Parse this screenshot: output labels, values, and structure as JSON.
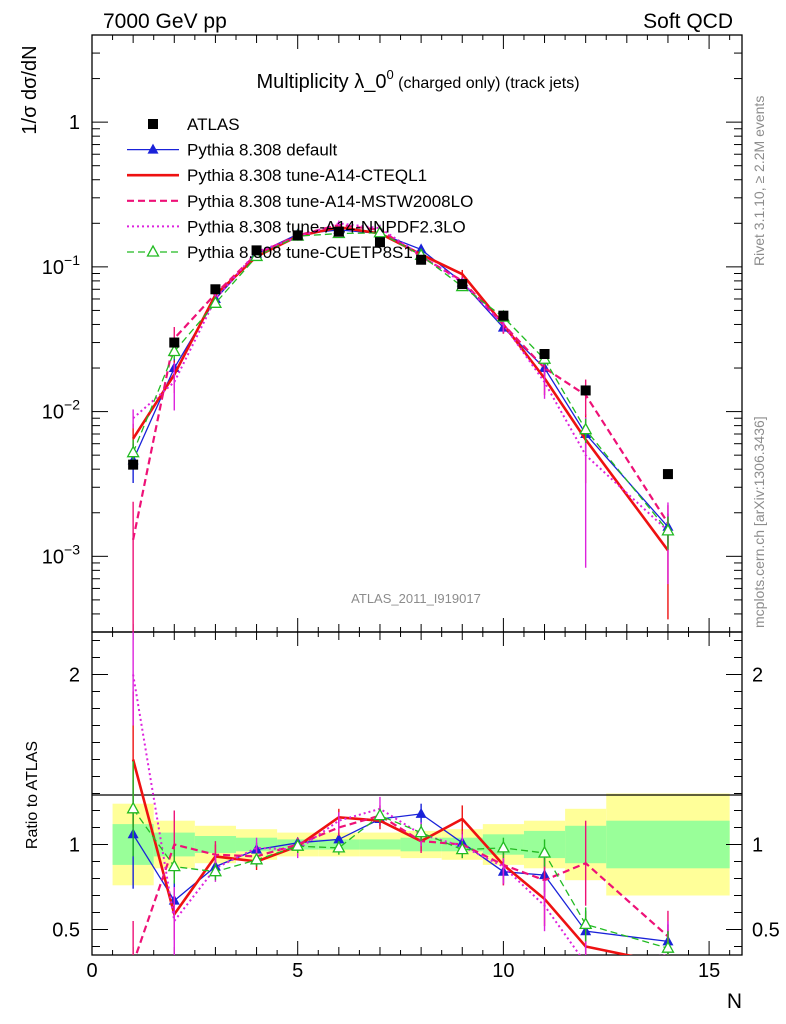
{
  "header": {
    "left": "7000 GeV pp",
    "right": "Soft QCD"
  },
  "title": {
    "main": "Multiplicity λ_0",
    "sup": "0",
    "small": " (charged only) (track jets)"
  },
  "ylabel_top": "1/σ dσ/dN",
  "ylabel_ratio": "Ratio to ATLAS",
  "xlabel": "N",
  "side_text_1": "Rivet 3.1.10, ≥ 2.2M events",
  "side_text_2": "mcplots.cern.ch [arXiv:1306.3436]",
  "analysis_label": "ATLAS_2011_I919017",
  "chart_data": {
    "type": "scatter",
    "x_range": [
      0,
      15.8
    ],
    "top_panel": {
      "y_scale": "log",
      "y_range": [
        0.0003,
        4
      ],
      "y_ticks": [
        {
          "value": 0.001,
          "base": "10",
          "exp": "−3"
        },
        {
          "value": 0.01,
          "base": "10",
          "exp": "−2"
        },
        {
          "value": 0.1,
          "base": "10",
          "exp": "−1"
        },
        {
          "value": 1,
          "base": "1",
          "exp": ""
        }
      ]
    },
    "ratio_panel": {
      "y_range": [
        0.35,
        2.25
      ],
      "y_ticks": [
        "0.5",
        "1",
        "2"
      ],
      "y_tick_values": [
        0.5,
        1,
        2
      ]
    },
    "x_ticks": [
      "0",
      "5",
      "10",
      "15"
    ],
    "x_tick_values": [
      0,
      5,
      10,
      15
    ],
    "band_yellow": [
      {
        "x0": 0.5,
        "x1": 1.5,
        "lo": 0.76,
        "hi": 1.24
      },
      {
        "x0": 1.5,
        "x1": 2.5,
        "lo": 0.86,
        "hi": 1.14
      },
      {
        "x0": 2.5,
        "x1": 3.5,
        "lo": 0.89,
        "hi": 1.11
      },
      {
        "x0": 3.5,
        "x1": 4.5,
        "lo": 0.91,
        "hi": 1.09
      },
      {
        "x0": 4.5,
        "x1": 5.5,
        "lo": 0.93,
        "hi": 1.07
      },
      {
        "x0": 5.5,
        "x1": 6.5,
        "lo": 0.93,
        "hi": 1.07
      },
      {
        "x0": 6.5,
        "x1": 7.5,
        "lo": 0.93,
        "hi": 1.07
      },
      {
        "x0": 7.5,
        "x1": 8.5,
        "lo": 0.92,
        "hi": 1.08
      },
      {
        "x0": 8.5,
        "x1": 9.5,
        "lo": 0.91,
        "hi": 1.09
      },
      {
        "x0": 9.5,
        "x1": 10.5,
        "lo": 0.88,
        "hi": 1.12
      },
      {
        "x0": 10.5,
        "x1": 11.5,
        "lo": 0.86,
        "hi": 1.14
      },
      {
        "x0": 11.5,
        "x1": 12.5,
        "lo": 0.79,
        "hi": 1.21
      },
      {
        "x0": 12.5,
        "x1": 15.5,
        "lo": 0.7,
        "hi": 1.3
      }
    ],
    "band_green": [
      {
        "x0": 0.5,
        "x1": 1.5,
        "lo": 0.88,
        "hi": 1.12
      },
      {
        "x0": 1.5,
        "x1": 2.5,
        "lo": 0.93,
        "hi": 1.07
      },
      {
        "x0": 2.5,
        "x1": 3.5,
        "lo": 0.95,
        "hi": 1.05
      },
      {
        "x0": 3.5,
        "x1": 4.5,
        "lo": 0.96,
        "hi": 1.04
      },
      {
        "x0": 4.5,
        "x1": 5.5,
        "lo": 0.97,
        "hi": 1.03
      },
      {
        "x0": 5.5,
        "x1": 6.5,
        "lo": 0.97,
        "hi": 1.03
      },
      {
        "x0": 6.5,
        "x1": 7.5,
        "lo": 0.97,
        "hi": 1.03
      },
      {
        "x0": 7.5,
        "x1": 8.5,
        "lo": 0.96,
        "hi": 1.04
      },
      {
        "x0": 8.5,
        "x1": 9.5,
        "lo": 0.96,
        "hi": 1.04
      },
      {
        "x0": 9.5,
        "x1": 10.5,
        "lo": 0.94,
        "hi": 1.06
      },
      {
        "x0": 10.5,
        "x1": 11.5,
        "lo": 0.92,
        "hi": 1.08
      },
      {
        "x0": 11.5,
        "x1": 12.5,
        "lo": 0.89,
        "hi": 1.11
      },
      {
        "x0": 12.5,
        "x1": 15.5,
        "lo": 0.86,
        "hi": 1.14
      }
    ],
    "data": {
      "name": "ATLAS",
      "color": "#000000",
      "x": [
        1,
        2,
        3,
        4,
        5,
        6,
        7,
        8,
        9,
        10,
        11,
        12,
        14
      ],
      "y": [
        0.0043,
        0.03,
        0.07,
        0.13,
        0.165,
        0.175,
        0.148,
        0.112,
        0.076,
        0.046,
        0.025,
        0.014,
        0.0037
      ]
    },
    "series": [
      {
        "name": "Pythia 8.308 default",
        "color": "#1a22d9",
        "style": "solid",
        "marker": "triangle-filled",
        "width": 1.3,
        "x": [
          1,
          2,
          3,
          4,
          5,
          6,
          7,
          8,
          9,
          10,
          11,
          12,
          14
        ],
        "y": [
          0.0046,
          0.02,
          0.06,
          0.123,
          0.168,
          0.18,
          0.17,
          0.132,
          0.078,
          0.038,
          0.02,
          0.007,
          0.0016
        ],
        "ratio": [
          1.06,
          0.67,
          0.87,
          0.97,
          1.01,
          1.03,
          1.15,
          1.18,
          1.01,
          0.84,
          0.82,
          0.49,
          0.43
        ],
        "ratio_err": [
          0.32,
          0.12,
          0.05,
          0.04,
          0.03,
          0.04,
          0.04,
          0.06,
          0.06,
          0.07,
          0.1,
          0.12,
          0.1
        ]
      },
      {
        "name": "Pythia 8.308 tune-A14-CTEQL1",
        "color": "#ee1111",
        "style": "solid",
        "marker": "none",
        "width": 2.6,
        "x": [
          1,
          2,
          3,
          4,
          5,
          6,
          7,
          8,
          9,
          10,
          11,
          12,
          14
        ],
        "y": [
          0.0065,
          0.018,
          0.064,
          0.118,
          0.163,
          0.188,
          0.17,
          0.122,
          0.089,
          0.04,
          0.017,
          0.0064,
          0.0011
        ],
        "ratio": [
          1.5,
          0.59,
          0.93,
          0.9,
          0.99,
          1.16,
          1.14,
          1.02,
          1.15,
          0.88,
          0.68,
          0.4,
          0.3
        ],
        "ratio_err": [
          0.4,
          0.15,
          0.07,
          0.05,
          0.04,
          0.05,
          0.05,
          0.06,
          0.08,
          0.12,
          0.16,
          0.2,
          0.2
        ]
      },
      {
        "name": "Pythia 8.308 tune-A14-MSTW2008LO",
        "color": "#ee1177",
        "style": "dash",
        "marker": "none",
        "width": 2.2,
        "x": [
          1,
          2,
          3,
          4,
          5,
          6,
          7,
          8,
          9,
          10,
          11,
          12,
          14
        ],
        "y": [
          0.0013,
          0.032,
          0.065,
          0.123,
          0.165,
          0.195,
          0.18,
          0.118,
          0.08,
          0.04,
          0.02,
          0.013,
          0.0017
        ],
        "ratio": [
          0.3,
          1.0,
          0.94,
          0.93,
          1.0,
          1.1,
          1.17,
          1.02,
          1.0,
          0.88,
          0.79,
          0.89,
          0.46
        ],
        "ratio_err": [
          0.25,
          0.2,
          0.08,
          0.06,
          0.04,
          0.05,
          0.06,
          0.07,
          0.08,
          0.12,
          0.15,
          0.25,
          0.15
        ]
      },
      {
        "name": "Pythia 8.308 tune-A14-NNPDF2.3LO",
        "color": "#dd22dd",
        "style": "dot",
        "marker": "none",
        "width": 2.0,
        "x": [
          1,
          2,
          3,
          4,
          5,
          6,
          7,
          8,
          9,
          10,
          11,
          12,
          14
        ],
        "y": [
          0.009,
          0.016,
          0.06,
          0.127,
          0.16,
          0.2,
          0.185,
          0.12,
          0.078,
          0.04,
          0.016,
          0.005,
          0.0015
        ],
        "ratio": [
          2.0,
          0.55,
          0.86,
          0.98,
          0.97,
          1.14,
          1.21,
          1.06,
          0.99,
          0.87,
          0.64,
          0.3,
          0.35
        ],
        "ratio_err": [
          0.3,
          0.2,
          0.08,
          0.06,
          0.05,
          0.05,
          0.07,
          0.07,
          0.07,
          0.1,
          0.15,
          0.25,
          0.2
        ]
      },
      {
        "name": "Pythia 8.308 tune-CUETP8S1",
        "color": "#22bb22",
        "style": "dash",
        "marker": "triangle-open",
        "width": 1.3,
        "x": [
          1,
          2,
          3,
          4,
          5,
          6,
          7,
          8,
          9,
          10,
          11,
          12,
          14
        ],
        "y": [
          0.0052,
          0.026,
          0.056,
          0.118,
          0.163,
          0.17,
          0.172,
          0.12,
          0.073,
          0.045,
          0.023,
          0.0075,
          0.0015
        ],
        "ratio": [
          1.21,
          0.87,
          0.84,
          0.91,
          0.99,
          0.98,
          1.17,
          1.07,
          0.97,
          0.98,
          0.95,
          0.53,
          0.39
        ],
        "ratio_err": [
          0.28,
          0.1,
          0.05,
          0.04,
          0.04,
          0.04,
          0.04,
          0.05,
          0.05,
          0.06,
          0.08,
          0.1,
          0.1
        ]
      }
    ]
  }
}
